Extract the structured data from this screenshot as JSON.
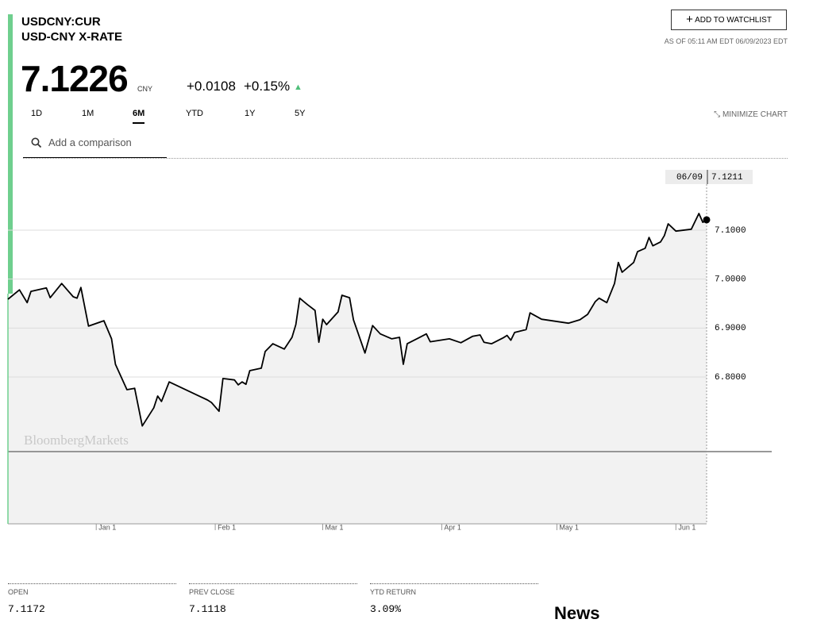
{
  "header": {
    "ticker": "USDCNY:CUR",
    "name": "USD-CNY X-RATE",
    "price": "7.1226",
    "currency": "CNY",
    "change": "+0.0108",
    "change_pct": "+0.15%",
    "watchlist_button": "ADD TO WATCHLIST",
    "timestamp": "AS OF 05:11 AM EDT 06/09/2023 EDT"
  },
  "tabs": [
    "1D",
    "1M",
    "6M",
    "YTD",
    "1Y",
    "5Y"
  ],
  "active_tab": 2,
  "minimize": "MINIMIZE CHART",
  "search_placeholder": "Add a comparison",
  "chart_data": {
    "type": "line",
    "watermark": "BloombergMarkets",
    "x": [
      "12/09",
      "12/12",
      "12/14",
      "12/15",
      "12/19",
      "12/20",
      "12/23",
      "12/26",
      "12/27",
      "12/28",
      "12/30",
      "01/03",
      "01/05",
      "01/06",
      "01/09",
      "01/11",
      "01/13",
      "01/16",
      "01/17",
      "01/18",
      "01/20",
      "01/30",
      "01/31",
      "02/02",
      "02/03",
      "02/06",
      "02/07",
      "02/08",
      "02/09",
      "02/10",
      "02/13",
      "02/14",
      "02/16",
      "02/19",
      "02/21",
      "02/22",
      "02/23",
      "02/25",
      "02/27",
      "02/28",
      "03/01",
      "03/02",
      "03/05",
      "03/06",
      "03/08",
      "03/09",
      "03/12",
      "03/14",
      "03/16",
      "03/19",
      "03/21",
      "03/22",
      "03/23",
      "03/26",
      "03/28",
      "03/29",
      "04/03",
      "04/06",
      "04/09",
      "04/11",
      "04/12",
      "04/14",
      "04/17",
      "04/18",
      "04/19",
      "04/20",
      "04/23",
      "04/24",
      "04/27",
      "05/04",
      "05/07",
      "05/09",
      "05/11",
      "05/12",
      "05/14",
      "05/16",
      "05/17",
      "05/18",
      "05/21",
      "05/22",
      "05/24",
      "05/25",
      "05/26",
      "05/28",
      "05/29",
      "05/30",
      "06/01",
      "06/05",
      "06/07",
      "06/08",
      "06/09"
    ],
    "series": [
      {
        "color": "#000000",
        "fill": "#f2f2f2",
        "values": [
          6.959,
          6.978,
          6.952,
          6.975,
          6.982,
          6.962,
          6.991,
          6.964,
          6.961,
          6.983,
          6.904,
          6.915,
          6.878,
          6.826,
          6.774,
          6.777,
          6.7,
          6.737,
          6.761,
          6.75,
          6.79,
          6.753,
          6.748,
          6.73,
          6.797,
          6.794,
          6.784,
          6.79,
          6.785,
          6.813,
          6.818,
          6.852,
          6.868,
          6.857,
          6.881,
          6.907,
          6.961,
          6.948,
          6.936,
          6.871,
          6.918,
          6.907,
          6.933,
          6.967,
          6.962,
          6.917,
          6.849,
          6.905,
          6.888,
          6.878,
          6.881,
          6.826,
          6.868,
          6.88,
          6.888,
          6.872,
          6.878,
          6.87,
          6.883,
          6.886,
          6.871,
          6.868,
          6.88,
          6.885,
          6.875,
          6.891,
          6.897,
          6.931,
          6.918,
          6.91,
          6.917,
          6.928,
          6.954,
          6.961,
          6.952,
          6.991,
          7.034,
          7.014,
          7.034,
          7.056,
          7.063,
          7.085,
          7.068,
          7.076,
          7.089,
          7.113,
          7.098,
          7.102,
          7.134,
          7.116,
          7.1211
        ]
      }
    ],
    "xlim": [
      "12/09",
      "06/09"
    ],
    "xticks": [
      {
        "value": "01/01",
        "label": "Jan 1"
      },
      {
        "value": "02/01",
        "label": "Feb 1"
      },
      {
        "value": "03/01",
        "label": "Mar 1"
      },
      {
        "value": "04/01",
        "label": "Apr 1"
      },
      {
        "value": "05/01",
        "label": "May 1"
      },
      {
        "value": "06/01",
        "label": "Jun 1"
      }
    ],
    "ylim": [
      6.5,
      7.22
    ],
    "yticks": [
      {
        "value": 6.8,
        "label": "6.8000"
      },
      {
        "value": 6.9,
        "label": "6.9000"
      },
      {
        "value": 7.0,
        "label": "7.0000"
      },
      {
        "value": 7.1,
        "label": "7.1000"
      }
    ],
    "grid": true,
    "crosshair": {
      "x": "06/09",
      "y": 7.1211
    }
  },
  "stats": [
    {
      "label": "OPEN",
      "value": "7.1172"
    },
    {
      "label": "PREV CLOSE",
      "value": "7.1118"
    },
    {
      "label": "YTD RETURN",
      "value": "3.09%"
    }
  ],
  "news_title": "News"
}
